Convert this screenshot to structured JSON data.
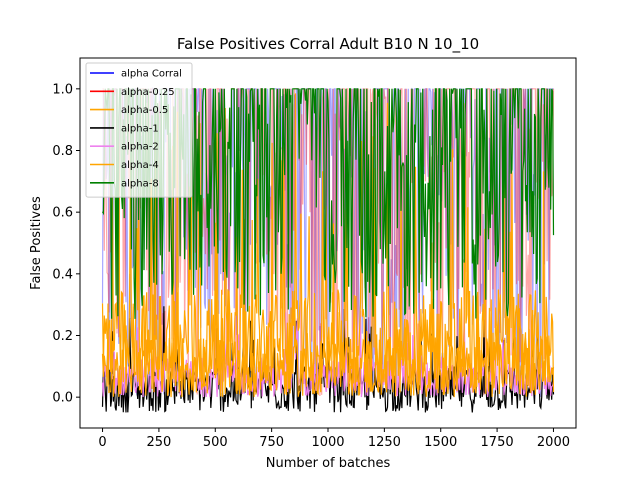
{
  "chart_data": {
    "type": "line",
    "title": "False Positives Corral Adult B10 N 10_10",
    "xlabel": "Number of batches",
    "ylabel": "False Positives",
    "xlim": [
      -100,
      2100
    ],
    "ylim": [
      -0.1,
      1.1
    ],
    "x_ticks": [
      0,
      250,
      500,
      750,
      1000,
      1250,
      1500,
      1750,
      2000
    ],
    "x_tick_labels": [
      "0",
      "250",
      "500",
      "750",
      "1000",
      "1250",
      "1500",
      "1750",
      "2000"
    ],
    "y_ticks": [
      0.0,
      0.2,
      0.4,
      0.6,
      0.8,
      1.0
    ],
    "y_tick_labels": [
      "0.0",
      "0.2",
      "0.4",
      "0.6",
      "0.8",
      "1.0"
    ],
    "legend_position": "upper-left",
    "n_batches": 2000,
    "series": [
      {
        "name": "alpha Corral",
        "color": "#0000ff",
        "typical_range": [
          0.0,
          1.0
        ],
        "center": 0.55
      },
      {
        "name": "alpha-0.25",
        "color": "#ff0000",
        "typical_range": [
          0.0,
          1.0
        ],
        "center": 0.55
      },
      {
        "name": "alpha-0.5",
        "color": "#ffa500",
        "typical_range": [
          -0.05,
          1.0
        ],
        "center": 0.2
      },
      {
        "name": "alpha-1",
        "color": "#000000",
        "typical_range": [
          -0.05,
          0.3
        ],
        "center": 0.02
      },
      {
        "name": "alpha-2",
        "color": "#ee82ee",
        "typical_range": [
          0.0,
          0.3
        ],
        "center": 0.05
      },
      {
        "name": "alpha-4",
        "color": "#ffa500",
        "typical_range": [
          0.0,
          0.35
        ],
        "center": 0.12
      },
      {
        "name": "alpha-8",
        "color": "#008000",
        "typical_range": [
          0.25,
          1.0
        ],
        "center": 0.6
      }
    ]
  }
}
